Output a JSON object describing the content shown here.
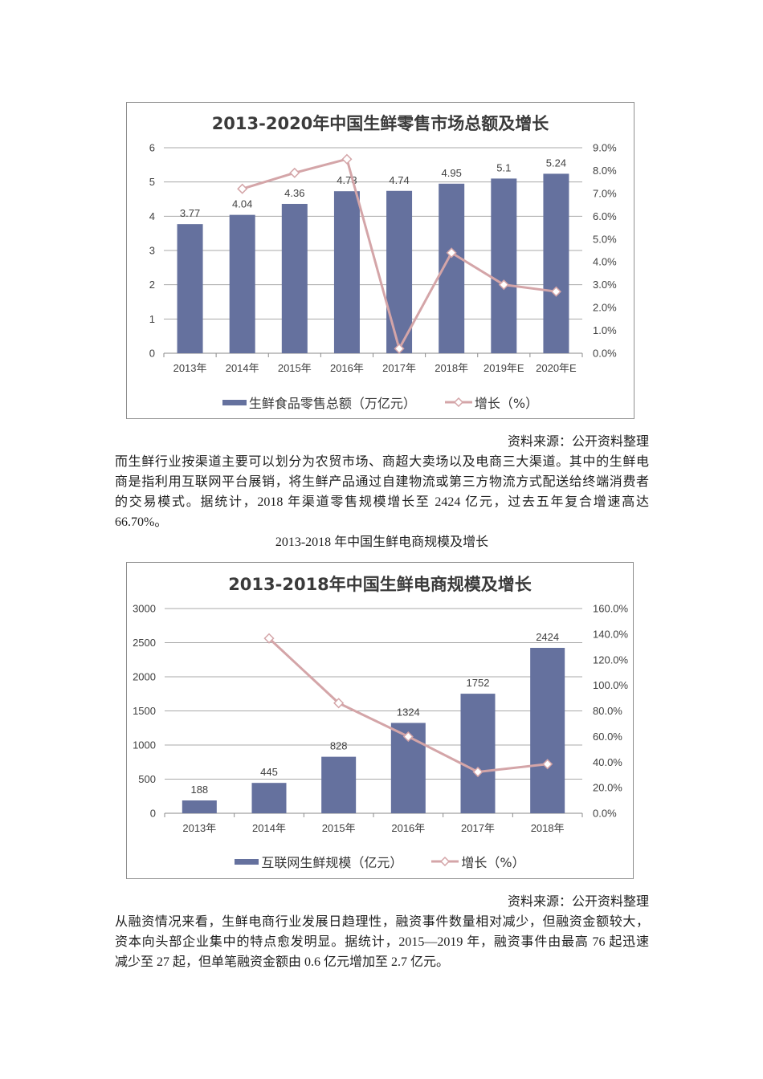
{
  "document": {
    "source1": "资料来源：公开资料整理",
    "paragraph1": [
      "而生鲜行业按渠道主要可以划分为农贸市场、商超大卖场以及电商三大渠道。其中的生鲜电",
      "商是指利用互联网平台展销，将生鲜产品通过自建物流或第三方物流方式配送给终端消费者",
      "的交易模式。据统计，2018 年渠道零售规模增长至 2424 亿元，过去五年复合增速高达",
      "66.70%。"
    ],
    "caption2": "2013-2018 年中国生鲜电商规模及增长",
    "source2": "资料来源：公开资料整理",
    "paragraph2": [
      "从融资情况来看，生鲜电商行业发展日趋理性，融资事件数量相对减少，但融资金额较大，",
      "资本向头部企业集中的特点愈发明显。据统计，2015—2019 年，融资事件由最高 76 起迅速",
      "减少至 27 起，但单笔融资金额由 0.6 亿元增加至 2.7 亿元。"
    ]
  },
  "chart_data": [
    {
      "type": "bar",
      "combo": "bar+line (dual axis)",
      "title": "2013-2020年中国生鲜零售市场总额及增长",
      "categories": [
        "2013年",
        "2014年",
        "2015年",
        "2016年",
        "2017年",
        "2018年",
        "2019年E",
        "2020年E"
      ],
      "series": [
        {
          "name": "生鲜食品零售总额（万亿元）",
          "type": "bar",
          "axis": "left",
          "values": [
            3.77,
            4.04,
            4.36,
            4.73,
            4.74,
            4.95,
            5.1,
            5.24
          ],
          "data_labels": [
            "3.77",
            "4.04",
            "4.36",
            "4.73",
            "4.74",
            "4.95",
            "5.1",
            "5.24"
          ],
          "color": "#65719e"
        },
        {
          "name": "增长（%）",
          "type": "line",
          "axis": "right",
          "marker": "diamond",
          "values": [
            null,
            7.2,
            7.9,
            8.5,
            0.2,
            4.4,
            3.0,
            2.7
          ],
          "color": "#d4a5a8"
        }
      ],
      "xlabel": "",
      "ylabel": "",
      "ylim": [
        0,
        6
      ],
      "ytick_labels": [
        "0",
        "1",
        "2",
        "3",
        "4",
        "5",
        "6"
      ],
      "y2lim": [
        0,
        9
      ],
      "y2tick_labels": [
        "0.0%",
        "1.0%",
        "2.0%",
        "3.0%",
        "4.0%",
        "5.0%",
        "6.0%",
        "7.0%",
        "8.0%",
        "9.0%"
      ],
      "grid": true,
      "legend_position": "bottom"
    },
    {
      "type": "bar",
      "combo": "bar+line (dual axis)",
      "title": "2013-2018年中国生鲜电商规模及增长",
      "categories": [
        "2013年",
        "2014年",
        "2015年",
        "2016年",
        "2017年",
        "2018年"
      ],
      "series": [
        {
          "name": "互联网生鲜规模（亿元）",
          "type": "bar",
          "axis": "left",
          "values": [
            188,
            445,
            828,
            1324,
            1752,
            2424
          ],
          "data_labels": [
            "188",
            "445",
            "828",
            "1324",
            "1752",
            "2424"
          ],
          "color": "#65719e"
        },
        {
          "name": "增长（%）",
          "type": "line",
          "axis": "right",
          "marker": "diamond",
          "values": [
            null,
            136.7,
            86.1,
            59.9,
            32.3,
            38.4
          ],
          "color": "#d4a5a8"
        }
      ],
      "xlabel": "",
      "ylabel": "",
      "ylim": [
        0,
        3000
      ],
      "ytick_labels": [
        "0",
        "500",
        "1000",
        "1500",
        "2000",
        "2500",
        "3000"
      ],
      "y2lim": [
        0,
        160
      ],
      "y2tick_labels": [
        "0.0%",
        "20.0%",
        "40.0%",
        "60.0%",
        "80.0%",
        "100.0%",
        "120.0%",
        "140.0%",
        "160.0%"
      ],
      "grid": true,
      "legend_position": "bottom"
    }
  ]
}
